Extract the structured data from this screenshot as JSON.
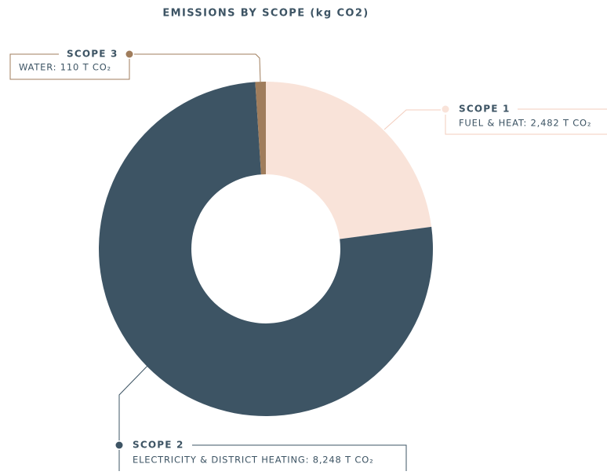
{
  "chart_data": {
    "type": "donut",
    "title": "EMISSIONS BY SCOPE (kg CO2)",
    "categories": [
      "SCOPE 1",
      "SCOPE 2",
      "SCOPE 3"
    ],
    "values": [
      2482,
      8248,
      110
    ],
    "value_labels": [
      "FUEL & HEAT: 2,482 T CO₂",
      "ELECTRICITY & DISTRICT HEATING: 8,248 T CO₂",
      "WATER: 110 T CO₂"
    ],
    "colors": [
      "#f9e3d9",
      "#3d5464",
      "#a07d5c"
    ]
  }
}
